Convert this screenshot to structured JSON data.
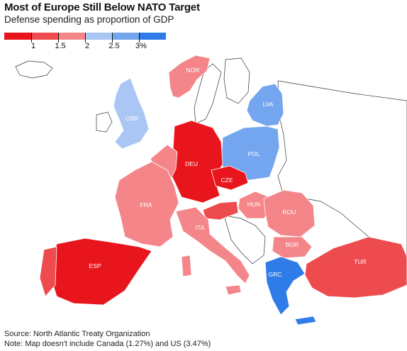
{
  "title": "Most of Europe Still Below NATO Target",
  "subtitle": "Defense spending as proportion of GDP",
  "legend": {
    "ticks": [
      "1",
      "1.5",
      "2",
      "2.5",
      "3%"
    ],
    "colors": [
      "#e8151d",
      "#ee4b4f",
      "#f4868a",
      "#a9c6f5",
      "#74a6ef",
      "#2f7ce8"
    ]
  },
  "countries": [
    {
      "code": "NOR",
      "label": "NOR",
      "bin": 2
    },
    {
      "code": "GBR",
      "label": "GBR",
      "bin": 3
    },
    {
      "code": "LVA",
      "label": "LVA",
      "bin": 4
    },
    {
      "code": "POL",
      "label": "POL",
      "bin": 4
    },
    {
      "code": "DEU",
      "label": "DEU",
      "bin": 0
    },
    {
      "code": "CZE",
      "label": "CZE",
      "bin": 0
    },
    {
      "code": "FRA",
      "label": "FRA",
      "bin": 2
    },
    {
      "code": "HUN",
      "label": "HUN",
      "bin": 2
    },
    {
      "code": "ROU",
      "label": "ROU",
      "bin": 2
    },
    {
      "code": "ITA",
      "label": "ITA",
      "bin": 2
    },
    {
      "code": "BGR",
      "label": "BGR",
      "bin": 2
    },
    {
      "code": "ESP",
      "label": "ESP",
      "bin": 0
    },
    {
      "code": "TUR",
      "label": "TUR",
      "bin": 1
    },
    {
      "code": "GRC",
      "label": "GRC",
      "bin": 5
    }
  ],
  "source": "Source: North Atlantic Treaty Organization",
  "note": "Note: Map doesn't include Canada (1.27%) and US (3.47%)"
}
